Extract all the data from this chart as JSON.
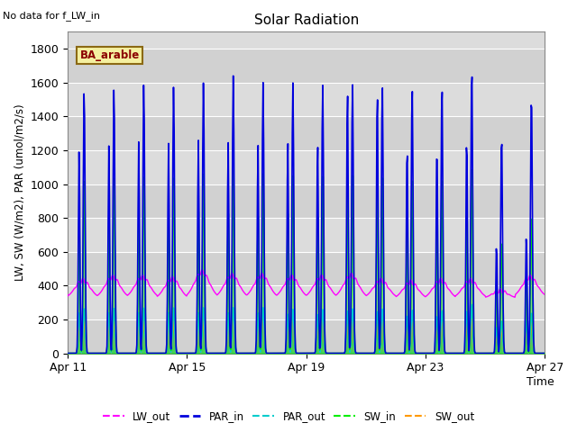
{
  "title": "Solar Radiation",
  "note": "No data for f_LW_in",
  "ylabel": "LW, SW (W/m2), PAR (umol/m2/s)",
  "xlabel": "Time",
  "legend_label": "BA_arable",
  "ylim": [
    0,
    1900
  ],
  "yticks": [
    0,
    200,
    400,
    600,
    800,
    1000,
    1200,
    1400,
    1600,
    1800
  ],
  "x_tick_days": [
    11,
    15,
    19,
    23,
    27
  ],
  "colors": {
    "LW_out": "#ff00ff",
    "PAR_in": "#0000dd",
    "PAR_out": "#00cccc",
    "SW_in": "#00ee00",
    "SW_out": "#ff9900"
  },
  "bg_color": "#dcdcdc",
  "n_days": 18,
  "par_in_peaks": [
    1610,
    1570,
    1580,
    1600,
    1580,
    1600,
    1640,
    1600,
    1600,
    1590,
    1600,
    1590,
    1580,
    1590,
    1700,
    1300,
    1550,
    1620
  ],
  "par_in_peaks2": [
    1450,
    1200,
    1230,
    1250,
    1240,
    1260,
    1250,
    1240,
    1260,
    1250,
    1580,
    1580,
    1250,
    1250,
    1300,
    650,
    700,
    1580
  ],
  "sw_in_peaks": [
    1060,
    1040,
    1050,
    1050,
    1040,
    1060,
    1080,
    1060,
    1050,
    1050,
    1060,
    1050,
    1040,
    1050,
    1130,
    680,
    840,
    1080
  ],
  "sw_in_peaks2": [
    960,
    800,
    820,
    830,
    820,
    840,
    830,
    820,
    840,
    830,
    1050,
    1050,
    830,
    830,
    870,
    430,
    470,
    1050
  ],
  "par_out_peaks": [
    270,
    270,
    270,
    270,
    270,
    270,
    270,
    270,
    260,
    260,
    265,
    265,
    260,
    260,
    300,
    200,
    250,
    255
  ],
  "par_out_peaks2": [
    240,
    240,
    240,
    240,
    240,
    240,
    240,
    240,
    235,
    235,
    260,
    260,
    235,
    235,
    265,
    160,
    200,
    260
  ],
  "sw_out_peaks": [
    200,
    205,
    205,
    205,
    205,
    205,
    205,
    205,
    205,
    205,
    205,
    205,
    205,
    205,
    210,
    145,
    200,
    205
  ],
  "sw_out_peaks2": [
    180,
    185,
    185,
    185,
    185,
    185,
    185,
    185,
    185,
    185,
    200,
    200,
    185,
    185,
    195,
    115,
    160,
    200
  ],
  "lw_out_base": 330,
  "lw_out_day_peaks": [
    460,
    430,
    450,
    450,
    440,
    480,
    460,
    460,
    450,
    450,
    460,
    430,
    420,
    430,
    430,
    370,
    450,
    350
  ],
  "lw_out_night": [
    330,
    325,
    325,
    325,
    320,
    325,
    325,
    325,
    325,
    325,
    325,
    325,
    320,
    320,
    325,
    325,
    330,
    340
  ]
}
